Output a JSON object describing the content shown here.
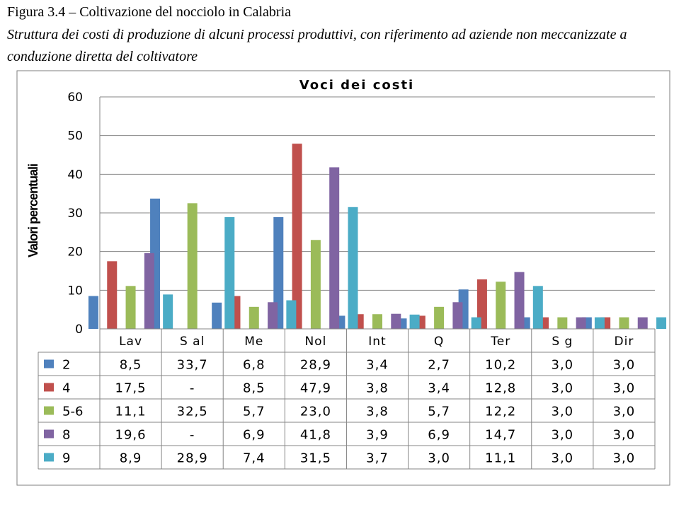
{
  "figure": {
    "title": "Figura 3.4 – Coltivazione del nocciolo in Calabria",
    "subtitle": "Struttura dei costi di produzione di alcuni processi produttivi, con riferimento ad aziende non meccanizzate a conduzione diretta del coltivatore"
  },
  "chart_data": {
    "type": "bar",
    "title": "Voci dei costi",
    "ylabel": "Valori percentuali",
    "xlabel": "",
    "ylim": [
      0,
      60
    ],
    "yticks": [
      "0",
      "10",
      "20",
      "30",
      "40",
      "50",
      "60"
    ],
    "grid": true,
    "categories": [
      "Lav",
      "Sal",
      "Me",
      "Nol",
      "Int",
      "Q",
      "Ter",
      "Sg",
      "Dir"
    ],
    "categories_display": [
      "Lav",
      "S al",
      "Me",
      "Nol",
      "Int",
      "Q",
      "Ter",
      "S g",
      "Dir"
    ],
    "series": [
      {
        "name": "2",
        "color": "#4F81BD",
        "values": [
          8.5,
          33.7,
          6.8,
          28.9,
          3.4,
          2.7,
          10.2,
          3.0,
          3.0
        ],
        "labels": [
          "8,5",
          "33,7",
          "6,8",
          "28,9",
          "3,4",
          "2,7",
          "10,2",
          "3,0",
          "3,0"
        ]
      },
      {
        "name": "4",
        "color": "#C0504D",
        "values": [
          17.5,
          null,
          8.5,
          47.9,
          3.8,
          3.4,
          12.8,
          3.0,
          3.0
        ],
        "labels": [
          "17,5",
          "-",
          "8,5",
          "47,9",
          "3,8",
          "3,4",
          "12,8",
          "3,0",
          "3,0"
        ]
      },
      {
        "name": "5-6",
        "color": "#9BBB59",
        "values": [
          11.1,
          32.5,
          5.7,
          23.0,
          3.8,
          5.7,
          12.2,
          3.0,
          3.0
        ],
        "labels": [
          "11,1",
          "32,5",
          "5,7",
          "23,0",
          "3,8",
          "5,7",
          "12,2",
          "3,0",
          "3,0"
        ]
      },
      {
        "name": "8",
        "color": "#8064A2",
        "values": [
          19.6,
          null,
          6.9,
          41.8,
          3.9,
          6.9,
          14.7,
          3.0,
          3.0
        ],
        "labels": [
          "19,6",
          "-",
          "6,9",
          "41,8",
          "3,9",
          "6,9",
          "14,7",
          "3,0",
          "3,0"
        ]
      },
      {
        "name": "9",
        "color": "#4BACC6",
        "values": [
          8.9,
          28.9,
          7.4,
          31.5,
          3.7,
          3.0,
          11.1,
          3.0,
          3.0
        ],
        "labels": [
          "8,9",
          "28,9",
          "7,4",
          "31,5",
          "3,7",
          "3,0",
          "11,1",
          "3,0",
          "3,0"
        ]
      }
    ]
  }
}
